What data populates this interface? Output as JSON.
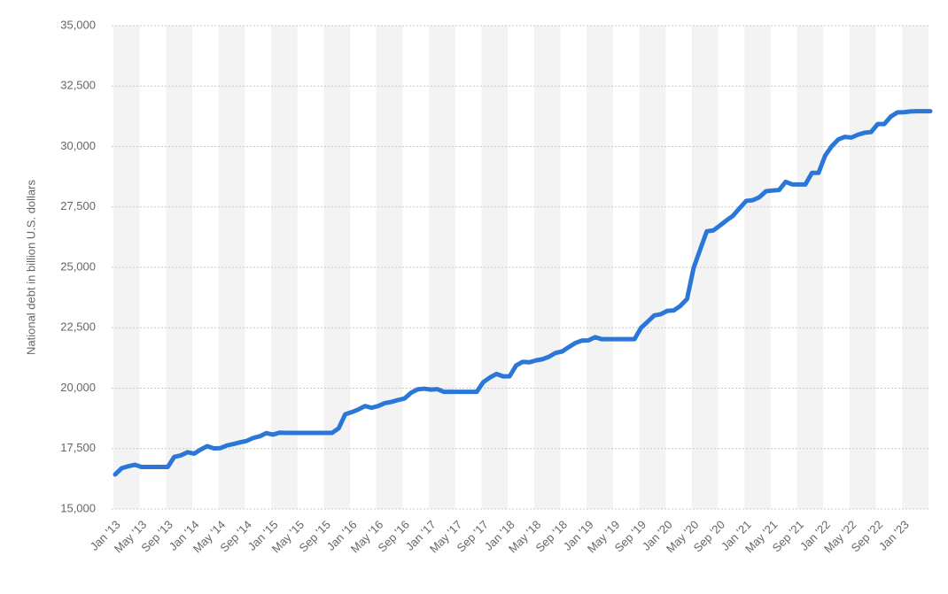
{
  "chart_data": {
    "type": "line",
    "y_label": "National debt in billion U.S. dollars",
    "categories": [
      "Jan '13",
      null,
      null,
      null,
      "May '13",
      null,
      null,
      null,
      "Sep '13",
      null,
      null,
      null,
      "Jan '14",
      null,
      null,
      null,
      "May '14",
      null,
      null,
      null,
      "Sep '14",
      null,
      null,
      null,
      "Jan '15",
      null,
      null,
      null,
      "May '15",
      null,
      null,
      null,
      "Sep '15",
      null,
      null,
      null,
      "Jan '16",
      null,
      null,
      null,
      "May '16",
      null,
      null,
      null,
      "Sep '16",
      null,
      null,
      null,
      "Jan '17",
      null,
      null,
      null,
      "May '17",
      null,
      null,
      null,
      "Sep '17",
      null,
      null,
      null,
      "Jan '18",
      null,
      null,
      null,
      "May '18",
      null,
      null,
      null,
      "Sep '18",
      null,
      null,
      null,
      "Jan '19",
      null,
      null,
      null,
      "May '19",
      null,
      null,
      null,
      "Sep '19",
      null,
      null,
      null,
      "Jan '20",
      null,
      null,
      null,
      "May '20",
      null,
      null,
      null,
      "Sep '20",
      null,
      null,
      null,
      "Jan '21",
      null,
      null,
      null,
      "May '21",
      null,
      null,
      null,
      "Sep '21",
      null,
      null,
      null,
      "Jan '22",
      null,
      null,
      null,
      "May '22",
      null,
      null,
      null,
      "Sep '22",
      null,
      null,
      null,
      "Jan '23",
      null,
      null,
      null,
      null
    ],
    "series": [
      {
        "color": "#2b77d8",
        "values": [
          16430,
          16690,
          16770,
          16830,
          16740,
          16740,
          16740,
          16740,
          16740,
          17160,
          17220,
          17350,
          17290,
          17460,
          17600,
          17510,
          17520,
          17630,
          17690,
          17760,
          17820,
          17940,
          18010,
          18140,
          18080,
          18160,
          18150,
          18150,
          18150,
          18150,
          18150,
          18150,
          18150,
          18150,
          18340,
          18920,
          19010,
          19120,
          19260,
          19190,
          19260,
          19380,
          19430,
          19510,
          19570,
          19810,
          19950,
          19980,
          19940,
          19960,
          19850,
          19850,
          19850,
          19850,
          19850,
          19850,
          20250,
          20440,
          20590,
          20490,
          20490,
          20940,
          21090,
          21070,
          21150,
          21200,
          21300,
          21460,
          21520,
          21700,
          21870,
          21970,
          21980,
          22110,
          22030,
          22030,
          22030,
          22030,
          22030,
          22030,
          22500,
          22750,
          23010,
          23060,
          23200,
          23220,
          23410,
          23690,
          24980,
          25740,
          26490,
          26530,
          26730,
          26940,
          27140,
          27450,
          27750,
          27780,
          27900,
          28150,
          28180,
          28200,
          28540,
          28430,
          28430,
          28430,
          28910,
          28910,
          29620,
          30010,
          30290,
          30400,
          30370,
          30490,
          30570,
          30600,
          30930,
          30930,
          31240,
          31410,
          31420,
          31450,
          31460,
          31460,
          31460
        ]
      }
    ],
    "ylim": [
      15000,
      35000
    ],
    "yticks": [
      {
        "value": 15000,
        "label": "15,000"
      },
      {
        "value": 17500,
        "label": "17,500"
      },
      {
        "value": 20000,
        "label": "20,000"
      },
      {
        "value": 22500,
        "label": "22,500"
      },
      {
        "value": 25000,
        "label": "25,000"
      },
      {
        "value": 27500,
        "label": "27,500"
      },
      {
        "value": 30000,
        "label": "30,000"
      },
      {
        "value": 32500,
        "label": "32,500"
      },
      {
        "value": 35000,
        "label": "35,000"
      }
    ],
    "grid": true
  }
}
